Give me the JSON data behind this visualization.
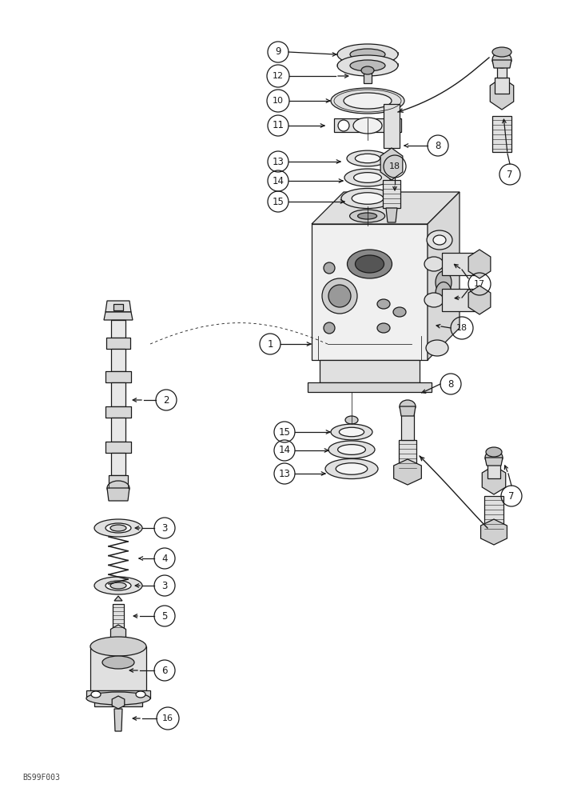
{
  "bg": "#ffffff",
  "lc": "#1a1a1a",
  "lw_main": 0.9,
  "lw_thin": 0.55,
  "watermark": "BS99F003",
  "fig_w": 7.12,
  "fig_h": 10.0,
  "dpi": 100
}
